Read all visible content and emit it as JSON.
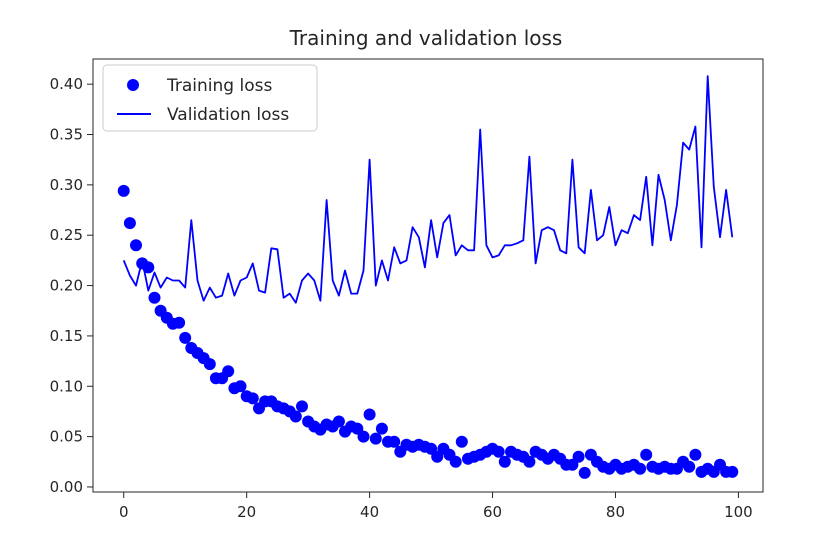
{
  "chart_data": {
    "type": "line",
    "title": "Training and validation loss",
    "xlabel": "",
    "ylabel": "",
    "xlim": [
      -5,
      104
    ],
    "ylim": [
      -0.005,
      0.425
    ],
    "xticks": [
      0,
      20,
      40,
      60,
      80,
      100
    ],
    "yticks": [
      0.0,
      0.05,
      0.1,
      0.15,
      0.2,
      0.25,
      0.3,
      0.35,
      0.4
    ],
    "ytick_labels": [
      "0.00",
      "0.05",
      "0.10",
      "0.15",
      "0.20",
      "0.25",
      "0.30",
      "0.35",
      "0.40"
    ],
    "xtick_labels": [
      "0",
      "20",
      "40",
      "60",
      "80",
      "100"
    ],
    "grid": false,
    "legend_position": "top-left",
    "series": [
      {
        "name": "Training loss",
        "style": "dots",
        "color": "#0000ff",
        "x": [
          0,
          1,
          2,
          3,
          4,
          5,
          6,
          7,
          8,
          9,
          10,
          11,
          12,
          13,
          14,
          15,
          16,
          17,
          18,
          19,
          20,
          21,
          22,
          23,
          24,
          25,
          26,
          27,
          28,
          29,
          30,
          31,
          32,
          33,
          34,
          35,
          36,
          37,
          38,
          39,
          40,
          41,
          42,
          43,
          44,
          45,
          46,
          47,
          48,
          49,
          50,
          51,
          52,
          53,
          54,
          55,
          56,
          57,
          58,
          59,
          60,
          61,
          62,
          63,
          64,
          65,
          66,
          67,
          68,
          69,
          70,
          71,
          72,
          73,
          74,
          75,
          76,
          77,
          78,
          79,
          80,
          81,
          82,
          83,
          84,
          85,
          86,
          87,
          88,
          89,
          90,
          91,
          92,
          93,
          94,
          95,
          96,
          97,
          98,
          99
        ],
        "values": [
          0.294,
          0.262,
          0.24,
          0.222,
          0.218,
          0.188,
          0.175,
          0.168,
          0.162,
          0.163,
          0.148,
          0.138,
          0.133,
          0.128,
          0.122,
          0.108,
          0.108,
          0.115,
          0.098,
          0.1,
          0.09,
          0.088,
          0.078,
          0.085,
          0.085,
          0.08,
          0.078,
          0.075,
          0.07,
          0.08,
          0.065,
          0.06,
          0.057,
          0.062,
          0.06,
          0.065,
          0.055,
          0.06,
          0.058,
          0.05,
          0.072,
          0.048,
          0.058,
          0.045,
          0.045,
          0.035,
          0.042,
          0.04,
          0.042,
          0.04,
          0.038,
          0.03,
          0.038,
          0.032,
          0.025,
          0.045,
          0.028,
          0.03,
          0.032,
          0.035,
          0.038,
          0.035,
          0.025,
          0.035,
          0.032,
          0.03,
          0.025,
          0.035,
          0.032,
          0.028,
          0.032,
          0.028,
          0.022,
          0.022,
          0.03,
          0.014,
          0.032,
          0.025,
          0.02,
          0.018,
          0.022,
          0.018,
          0.02,
          0.022,
          0.018,
          0.032,
          0.02,
          0.018,
          0.02,
          0.018,
          0.018,
          0.025,
          0.02,
          0.032,
          0.015,
          0.018,
          0.015,
          0.022,
          0.015,
          0.015
        ]
      },
      {
        "name": "Validation loss",
        "style": "line",
        "color": "#0000ff",
        "x": [
          0,
          1,
          2,
          3,
          4,
          5,
          6,
          7,
          8,
          9,
          10,
          11,
          12,
          13,
          14,
          15,
          16,
          17,
          18,
          19,
          20,
          21,
          22,
          23,
          24,
          25,
          26,
          27,
          28,
          29,
          30,
          31,
          32,
          33,
          34,
          35,
          36,
          37,
          38,
          39,
          40,
          41,
          42,
          43,
          44,
          45,
          46,
          47,
          48,
          49,
          50,
          51,
          52,
          53,
          54,
          55,
          56,
          57,
          58,
          59,
          60,
          61,
          62,
          63,
          64,
          65,
          66,
          67,
          68,
          69,
          70,
          71,
          72,
          73,
          74,
          75,
          76,
          77,
          78,
          79,
          80,
          81,
          82,
          83,
          84,
          85,
          86,
          87,
          88,
          89,
          90,
          91,
          92,
          93,
          94,
          95,
          96,
          97,
          98,
          99
        ],
        "values": [
          0.225,
          0.21,
          0.2,
          0.225,
          0.195,
          0.213,
          0.198,
          0.208,
          0.205,
          0.205,
          0.198,
          0.265,
          0.205,
          0.185,
          0.198,
          0.188,
          0.19,
          0.212,
          0.19,
          0.205,
          0.208,
          0.222,
          0.195,
          0.193,
          0.237,
          0.236,
          0.188,
          0.192,
          0.183,
          0.205,
          0.212,
          0.205,
          0.185,
          0.285,
          0.205,
          0.19,
          0.215,
          0.192,
          0.192,
          0.215,
          0.325,
          0.2,
          0.225,
          0.205,
          0.238,
          0.222,
          0.225,
          0.258,
          0.248,
          0.218,
          0.265,
          0.228,
          0.262,
          0.27,
          0.23,
          0.24,
          0.235,
          0.235,
          0.355,
          0.24,
          0.228,
          0.23,
          0.24,
          0.24,
          0.242,
          0.245,
          0.328,
          0.222,
          0.255,
          0.258,
          0.255,
          0.235,
          0.232,
          0.325,
          0.238,
          0.232,
          0.295,
          0.245,
          0.25,
          0.278,
          0.24,
          0.255,
          0.252,
          0.27,
          0.265,
          0.308,
          0.24,
          0.31,
          0.285,
          0.245,
          0.28,
          0.342,
          0.335,
          0.358,
          0.238,
          0.408,
          0.298,
          0.248,
          0.295,
          0.248
        ]
      }
    ]
  }
}
